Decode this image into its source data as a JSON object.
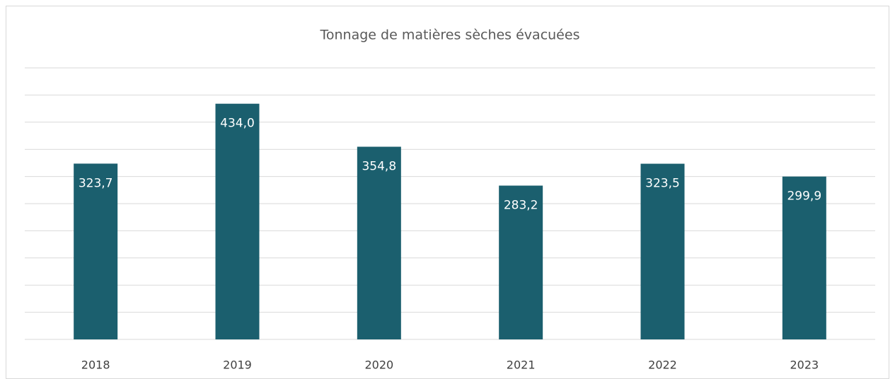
{
  "chart_data": {
    "type": "bar",
    "title": "Tonnage de matières sèches évacuées",
    "categories": [
      "2018",
      "2019",
      "2020",
      "2021",
      "2022",
      "2023"
    ],
    "values": [
      323.7,
      434.0,
      354.8,
      283.2,
      323.5,
      299.9
    ],
    "value_labels": [
      "323,7",
      "434,0",
      "354,8",
      "283,2",
      "323,5",
      "299,9"
    ],
    "color": "#1b5f6e",
    "ylim": [
      0,
      500
    ],
    "yticks": [
      0,
      50,
      100,
      150,
      200,
      250,
      300,
      350,
      400,
      450,
      500
    ],
    "grid": true
  }
}
